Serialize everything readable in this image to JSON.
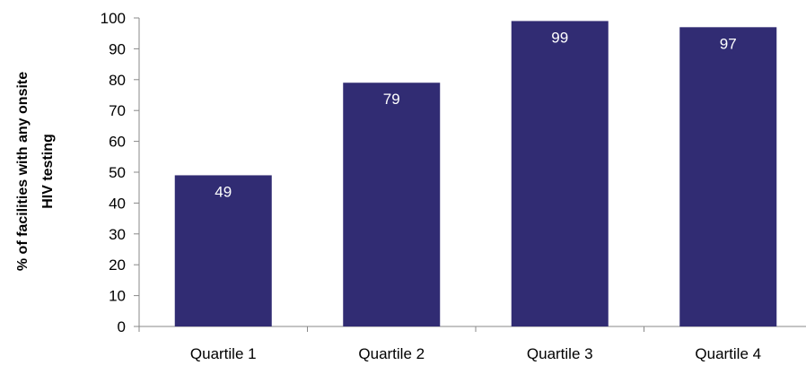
{
  "chart_data": {
    "type": "bar",
    "categories": [
      "Quartile 1",
      "Quartile 2",
      "Quartile 3",
      "Quartile 4"
    ],
    "values": [
      49,
      79,
      99,
      97
    ],
    "data_labels": [
      "49",
      "79",
      "99",
      "97"
    ],
    "title": "",
    "xlabel": "",
    "ylabel_lines": [
      "% of facilities with any onsite",
      "HIV testing"
    ],
    "ylim": [
      0,
      100
    ],
    "yticks": [
      0,
      10,
      20,
      30,
      40,
      50,
      60,
      70,
      80,
      90,
      100
    ],
    "grid": false,
    "legend": "none",
    "bar_color": "#312C73",
    "label_color": "#ffffff"
  }
}
